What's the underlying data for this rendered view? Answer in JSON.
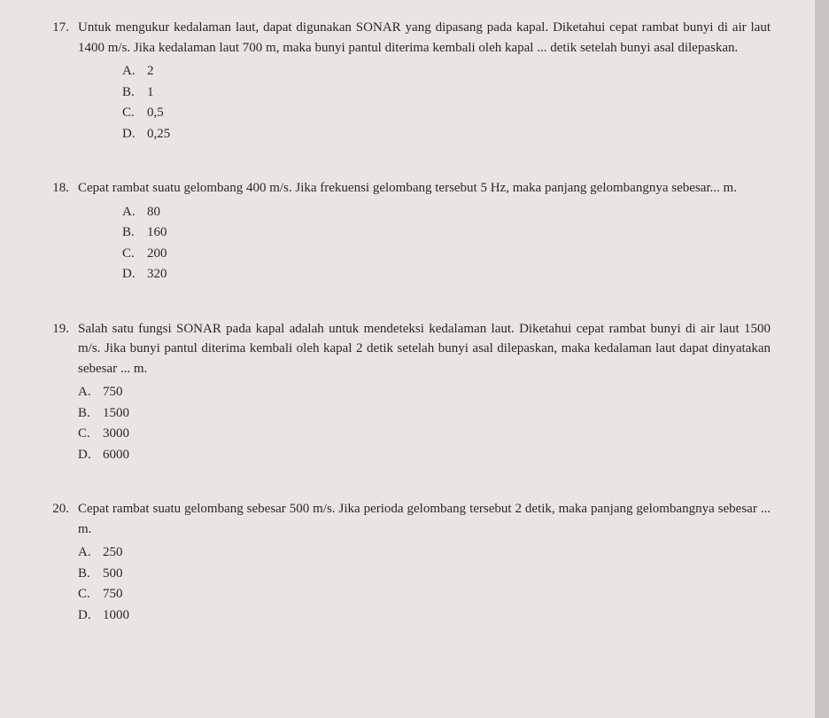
{
  "text_color": "#2a2a2a",
  "page_bg": "#e8e5e2",
  "outer_bg": "#c8c4c1",
  "font_size_pt": 11,
  "questions": [
    {
      "number": "17.",
      "stem": "Untuk mengukur kedalaman laut, dapat digunakan SONAR yang dipasang pada kapal. Diketahui cepat rambat bunyi di air laut 1400 m/s. Jika kedalaman laut 700 m, maka bunyi pantul diterima kembali oleh kapal ... detik setelah bunyi asal dilepaskan.",
      "options": [
        {
          "letter": "A.",
          "text": "2"
        },
        {
          "letter": "B.",
          "text": "1"
        },
        {
          "letter": "C.",
          "text": "0,5"
        },
        {
          "letter": "D.",
          "text": "0,25"
        }
      ]
    },
    {
      "number": "18.",
      "stem": "Cepat rambat suatu gelombang 400 m/s. Jika frekuensi gelombang tersebut 5 Hz, maka panjang gelombangnya sebesar... m.",
      "options": [
        {
          "letter": "A.",
          "text": "80"
        },
        {
          "letter": "B.",
          "text": "160"
        },
        {
          "letter": "C.",
          "text": "200"
        },
        {
          "letter": "D.",
          "text": "320"
        }
      ]
    },
    {
      "number": "19.",
      "stem": "Salah satu fungsi SONAR pada kapal adalah untuk mendeteksi kedalaman laut. Diketahui cepat rambat bunyi di air laut 1500 m/s. Jika bunyi pantul diterima kembali oleh kapal 2 detik setelah bunyi asal dilepaskan, maka kedalaman laut dapat dinyatakan sebesar ... m.",
      "options": [
        {
          "letter": "A.",
          "text": "750"
        },
        {
          "letter": "B.",
          "text": "1500"
        },
        {
          "letter": "C.",
          "text": "3000"
        },
        {
          "letter": "D.",
          "text": "6000"
        }
      ],
      "options_indent": 0
    },
    {
      "number": "20.",
      "stem": "Cepat rambat suatu gelombang sebesar 500 m/s. Jika perioda gelombang tersebut 2 detik, maka panjang gelombangnya sebesar ... m.",
      "options": [
        {
          "letter": "A.",
          "text": "250"
        },
        {
          "letter": "B.",
          "text": "500"
        },
        {
          "letter": "C.",
          "text": "750"
        },
        {
          "letter": "D.",
          "text": "1000"
        }
      ],
      "options_indent": 0
    }
  ]
}
